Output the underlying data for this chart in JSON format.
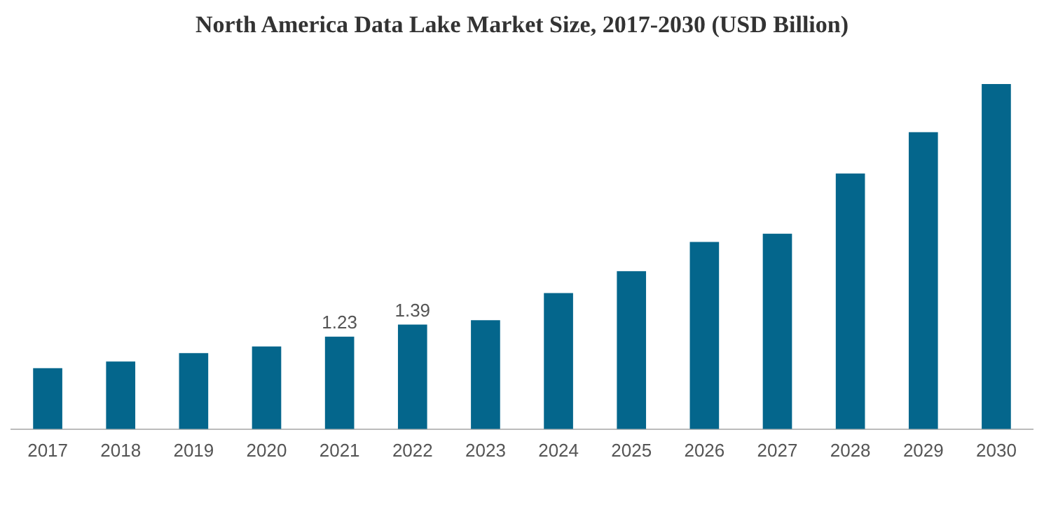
{
  "chart_data": {
    "type": "bar",
    "title": "North America Data Lake Market Size, 2017-2030 (USD Billion)",
    "categories": [
      "2017",
      "2018",
      "2019",
      "2020",
      "2021",
      "2022",
      "2023",
      "2024",
      "2025",
      "2026",
      "2027",
      "2028",
      "2029",
      "2030"
    ],
    "values": [
      0.81,
      0.9,
      1.01,
      1.1,
      1.23,
      1.39,
      1.45,
      1.81,
      2.1,
      2.49,
      2.6,
      3.4,
      3.95,
      4.59
    ],
    "value_labels": [
      null,
      null,
      null,
      null,
      "1.23",
      "1.39",
      null,
      null,
      null,
      null,
      null,
      null,
      null,
      null
    ],
    "color": "#04668c",
    "grid": false,
    "legend": false,
    "tick_labels": "x"
  }
}
